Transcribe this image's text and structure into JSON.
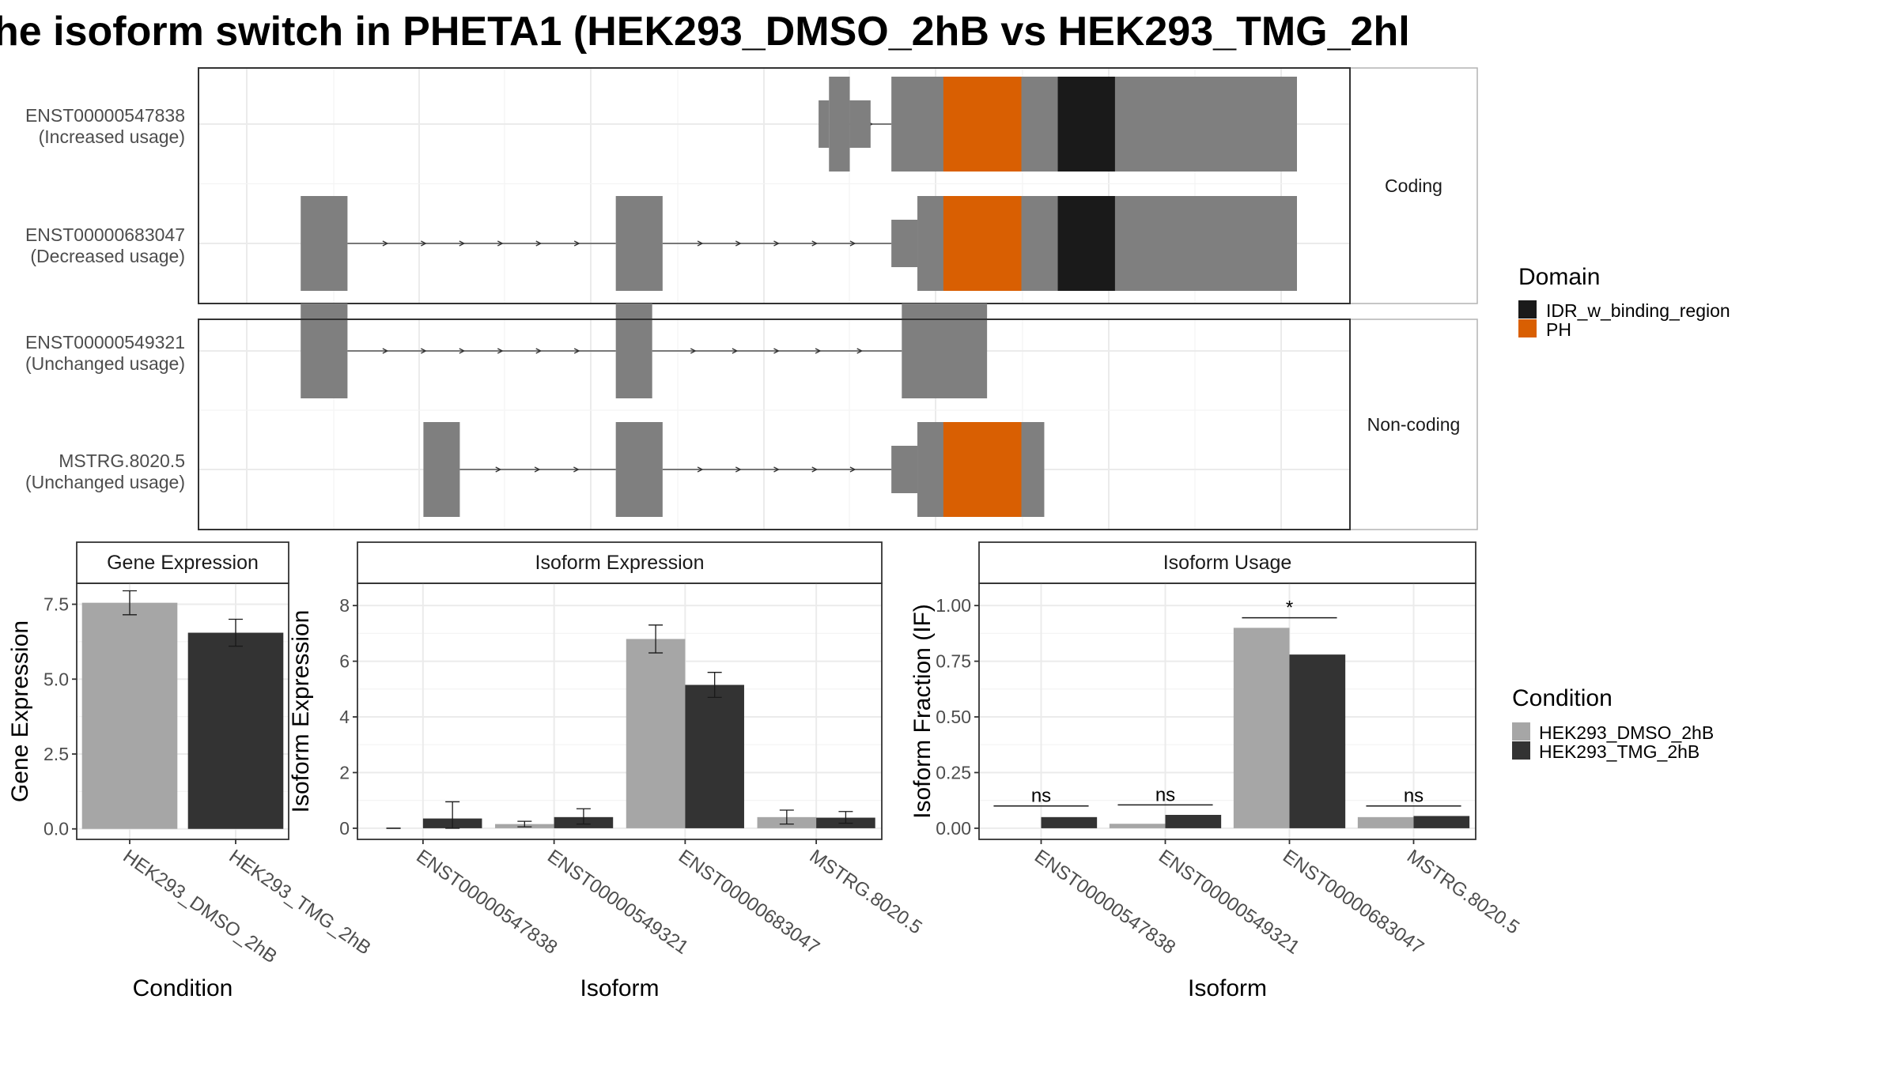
{
  "title": "he isoform switch in PHETA1 (HEK293_DMSO_2hB vs HEK293_TMG_2hl",
  "colors": {
    "exon": "#7f7f7f",
    "intron": "#333333",
    "PH": "#d95f02",
    "IDR_w_binding_region": "#1a1a1a",
    "HEK293_DMSO_2hB": "#a6a6a6",
    "HEK293_TMG_2hB": "#333333",
    "grid_major": "#ebebeb",
    "grid_minor": "#f4f4f4",
    "strip_fill": "#ffffff"
  },
  "legend_domain": {
    "title": "Domain",
    "items": [
      {
        "label": "IDR_w_binding_region",
        "color": "#1a1a1a"
      },
      {
        "label": "PH",
        "color": "#d95f02"
      }
    ]
  },
  "legend_condition": {
    "title": "Condition",
    "items": [
      {
        "label": "HEK293_DMSO_2hB",
        "color": "#a6a6a6"
      },
      {
        "label": "HEK293_TMG_2hB",
        "color": "#333333"
      }
    ]
  },
  "chart_data": [
    {
      "type": "gene-structure",
      "x_range": [
        0,
        1000
      ],
      "panels": [
        {
          "strip": "Coding",
          "isoforms": [
            {
              "id": "ENST00000547838",
              "status": "(Increased usage)",
              "exons": [
                [
                  540,
                  550,
                  "utr"
                ],
                [
                  550,
                  570,
                  "cds"
                ],
                [
                  570,
                  590,
                  "utr"
                ],
                [
                  610,
                  1000,
                  "cds"
                ]
              ],
              "introns": [
                [
                  570,
                  610
                ]
              ],
              "domains": [
                {
                  "name": "PH",
                  "start": 660,
                  "end": 735
                },
                {
                  "name": "IDR_w_binding_region",
                  "start": 770,
                  "end": 825
                }
              ]
            },
            {
              "id": "ENST00000683047",
              "status": "(Decreased usage)",
              "exons": [
                [
                  42,
                  87,
                  "cds"
                ],
                [
                  345,
                  390,
                  "cds"
                ],
                [
                  610,
                  635,
                  "utr"
                ],
                [
                  635,
                  1000,
                  "cds"
                ]
              ],
              "introns": [
                [
                  87,
                  345
                ],
                [
                  390,
                  610
                ]
              ],
              "domains": [
                {
                  "name": "PH",
                  "start": 660,
                  "end": 735
                },
                {
                  "name": "IDR_w_binding_region",
                  "start": 770,
                  "end": 825
                }
              ]
            }
          ]
        },
        {
          "strip": "Non-coding",
          "isoforms": [
            {
              "id": "ENST00000549321",
              "status": "(Unchanged usage)",
              "exons": [
                [
                  42,
                  87,
                  "cds"
                ],
                [
                  345,
                  380,
                  "cds"
                ],
                [
                  620,
                  702,
                  "cds"
                ]
              ],
              "introns": [
                [
                  87,
                  345
                ],
                [
                  380,
                  620
                ]
              ],
              "domains": []
            },
            {
              "id": "MSTRG.8020.5",
              "status": "(Unchanged usage)",
              "exons": [
                [
                  160,
                  195,
                  "cds"
                ],
                [
                  345,
                  390,
                  "cds"
                ],
                [
                  610,
                  635,
                  "utr"
                ],
                [
                  635,
                  757,
                  "cds"
                ]
              ],
              "introns": [
                [
                  195,
                  345
                ],
                [
                  390,
                  610
                ]
              ],
              "domains": [
                {
                  "name": "PH",
                  "start": 660,
                  "end": 735
                }
              ]
            }
          ]
        }
      ]
    },
    {
      "type": "bar",
      "title": "Gene Expression",
      "xlabel": "Condition",
      "ylabel": "Gene Expression",
      "ylim": [
        -0.35,
        8.2
      ],
      "yticks": [
        0.0,
        2.5,
        5.0,
        7.5
      ],
      "ytick_labels": [
        "0.0",
        "2.5",
        "5.0",
        "7.5"
      ],
      "categories": [
        "HEK293_DMSO_2hB",
        "HEK293_TMG_2hB"
      ],
      "values": [
        7.55,
        6.55
      ],
      "errors": [
        [
          7.15,
          7.95
        ],
        [
          6.1,
          7.0
        ]
      ]
    },
    {
      "type": "bar",
      "title": "Isoform Expression",
      "xlabel": "Isoform",
      "ylabel": "Isoform Expression",
      "ylim": [
        -0.4,
        8.8
      ],
      "yticks": [
        0,
        2,
        4,
        6,
        8
      ],
      "ytick_labels": [
        "0",
        "2",
        "4",
        "6",
        "8"
      ],
      "categories": [
        "ENST00000547838",
        "ENST00000549321",
        "ENST00000683047",
        "MSTRG.8020.5"
      ],
      "series": [
        {
          "name": "HEK293_DMSO_2hB",
          "values": [
            0.0,
            0.15,
            6.8,
            0.4
          ],
          "errors": [
            [
              0.0,
              0.0
            ],
            [
              0.05,
              0.25
            ],
            [
              6.3,
              7.3
            ],
            [
              0.15,
              0.65
            ]
          ]
        },
        {
          "name": "HEK293_TMG_2hB",
          "values": [
            0.35,
            0.4,
            5.15,
            0.38
          ],
          "errors": [
            [
              0.0,
              0.95
            ],
            [
              0.15,
              0.7
            ],
            [
              4.7,
              5.6
            ],
            [
              0.18,
              0.6
            ]
          ]
        }
      ]
    },
    {
      "type": "bar",
      "title": "Isoform Usage",
      "xlabel": "Isoform",
      "ylabel": "Isoform Fraction (IF)",
      "ylim": [
        -0.05,
        1.1
      ],
      "yticks": [
        0.0,
        0.25,
        0.5,
        0.75,
        1.0
      ],
      "ytick_labels": [
        "0.00",
        "0.25",
        "0.50",
        "0.75",
        "1.00"
      ],
      "categories": [
        "ENST00000547838",
        "ENST00000549321",
        "ENST00000683047",
        "MSTRG.8020.5"
      ],
      "series": [
        {
          "name": "HEK293_DMSO_2hB",
          "values": [
            0.0,
            0.02,
            0.9,
            0.05
          ]
        },
        {
          "name": "HEK293_TMG_2hB",
          "values": [
            0.05,
            0.06,
            0.78,
            0.055
          ]
        }
      ],
      "significance": [
        {
          "label": "ns",
          "y": 0.1
        },
        {
          "label": "ns",
          "y": 0.105
        },
        {
          "label": "*",
          "y": 0.945
        },
        {
          "label": "ns",
          "y": 0.1
        }
      ]
    }
  ]
}
